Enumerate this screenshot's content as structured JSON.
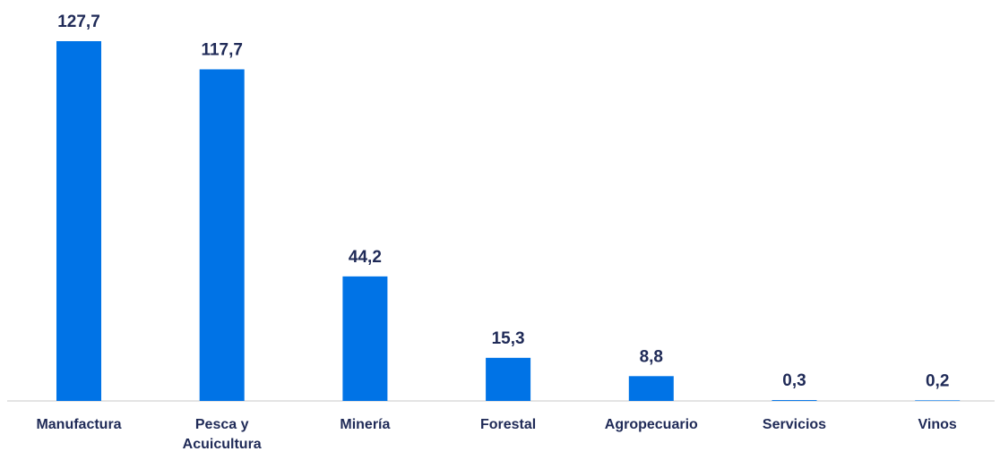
{
  "chart_data": {
    "type": "bar",
    "categories": [
      "Manufactura",
      "Pesca y Acuicultura",
      "Minería",
      "Forestal",
      "Agropecuario",
      "Servicios",
      "Vinos"
    ],
    "category_lines": [
      [
        "Manufactura"
      ],
      [
        "Pesca y",
        "Acuicultura"
      ],
      [
        "Minería"
      ],
      [
        "Forestal"
      ],
      [
        "Agropecuario"
      ],
      [
        "Servicios"
      ],
      [
        "Vinos"
      ]
    ],
    "values": [
      127.7,
      117.7,
      44.2,
      15.3,
      8.8,
      0.3,
      0.2
    ],
    "value_labels": [
      "127,7",
      "117,7",
      "44,2",
      "15,3",
      "8,8",
      "0,3",
      "0,2"
    ],
    "title": "",
    "xlabel": "",
    "ylabel": "",
    "ylim": [
      0,
      127.7
    ],
    "grid": false,
    "legend": "none",
    "colors": {
      "bar": "#0073e6",
      "label": "#1f2a57",
      "axis": "#c8c8c8"
    }
  }
}
